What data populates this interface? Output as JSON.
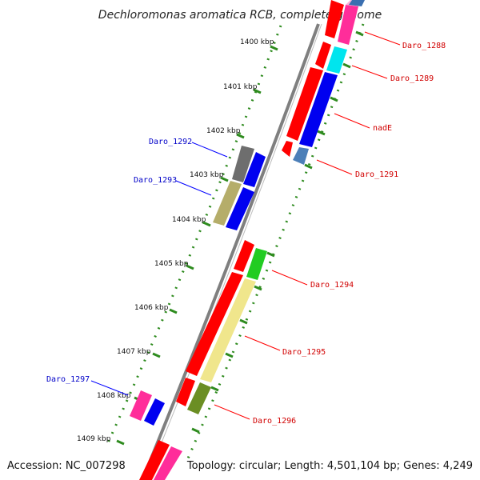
{
  "title": "Dechloromonas aromatica RCB, complete genome",
  "footer": {
    "accession": "Accession: NC_007298",
    "topology": "Topology: circular; Length: 4,501,104 bp; Genes: 4,249"
  },
  "scale_labels": [
    "1400 kbp",
    "1401 kbp",
    "1402 kbp",
    "1403 kbp",
    "1404 kbp",
    "1405 kbp",
    "1406 kbp",
    "1407 kbp",
    "1408 kbp",
    "1409 kbp"
  ],
  "colors": {
    "backbone": "#8c8c8c",
    "dotted_track": "#2e8b1e",
    "label_red": "#d10000",
    "label_blue": "#0000c8",
    "leader_red": "#ff0000",
    "leader_blue": "#0000ff"
  },
  "gene_labels": [
    {
      "text": "Daro_1288",
      "class": "red"
    },
    {
      "text": "Daro_1289",
      "class": "red"
    },
    {
      "text": "nadE",
      "class": "red"
    },
    {
      "text": "Daro_1291",
      "class": "red"
    },
    {
      "text": "Daro_1292",
      "class": "blue"
    },
    {
      "text": "Daro_1293",
      "class": "blue"
    },
    {
      "text": "Daro_1294",
      "class": "red"
    },
    {
      "text": "Daro_1295",
      "class": "red"
    },
    {
      "text": "Daro_1296",
      "class": "red"
    },
    {
      "text": "Daro_1297",
      "class": "blue"
    }
  ]
}
